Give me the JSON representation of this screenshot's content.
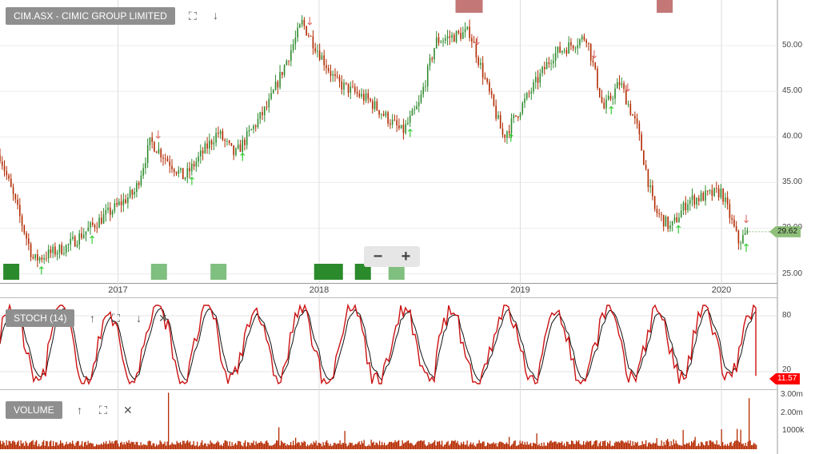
{
  "header": {
    "symbol_title": "CIM.ASX - CIMIC GROUP LIMITED",
    "fullscreen_icon": "expand-icon",
    "move_down_icon": "arrow-down-icon"
  },
  "stoch_panel": {
    "title": "STOCH (14)",
    "last_value": "11.57",
    "level_labels": [
      "80",
      "20"
    ]
  },
  "volume_panel": {
    "title": "VOLUME",
    "axis_labels": [
      "3.00m",
      "2.00m",
      "1000k"
    ]
  },
  "zoom": {
    "minus_label": "−",
    "plus_label": "+"
  },
  "colors": {
    "up": "#2e8b2e",
    "down": "#b22a00",
    "volume": "#b52a00",
    "stoch_k": "#cc1111",
    "stoch_d": "#111111",
    "signal_up": "#33cc33",
    "signal_down": "#e07070"
  },
  "chart_data": {
    "type": "line",
    "title": "CIM.ASX - CIMIC GROUP LIMITED",
    "ylim": [
      24,
      55
    ],
    "y_ticks": [
      "25.00",
      "30.00",
      "35.00",
      "40.00",
      "45.00",
      "50.00"
    ],
    "x_ticks": [
      "2017",
      "2018",
      "2019",
      "2020"
    ],
    "grid": true,
    "last_price": "29.62",
    "price_path": [
      {
        "date": "2016-06",
        "value": 38.0
      },
      {
        "date": "2016-08",
        "value": 26.5
      },
      {
        "date": "2016-10",
        "value": 28.0
      },
      {
        "date": "2016-12",
        "value": 31.0
      },
      {
        "date": "2017-02",
        "value": 34.0
      },
      {
        "date": "2017-03",
        "value": 39.5
      },
      {
        "date": "2017-05",
        "value": 35.5
      },
      {
        "date": "2017-07",
        "value": 40.5
      },
      {
        "date": "2017-08",
        "value": 38.0
      },
      {
        "date": "2017-10",
        "value": 43.5
      },
      {
        "date": "2017-12",
        "value": 52.5
      },
      {
        "date": "2018-02",
        "value": 46.0
      },
      {
        "date": "2018-04",
        "value": 44.0
      },
      {
        "date": "2018-06",
        "value": 40.5
      },
      {
        "date": "2018-07",
        "value": 43.5
      },
      {
        "date": "2018-08",
        "value": 50.5
      },
      {
        "date": "2018-10",
        "value": 51.5
      },
      {
        "date": "2018-12",
        "value": 40.0
      },
      {
        "date": "2019-03",
        "value": 49.0
      },
      {
        "date": "2019-05",
        "value": 51.0
      },
      {
        "date": "2019-06",
        "value": 43.0
      },
      {
        "date": "2019-07",
        "value": 46.0
      },
      {
        "date": "2019-08",
        "value": 41.0
      },
      {
        "date": "2019-09",
        "value": 32.0
      },
      {
        "date": "2019-10",
        "value": 30.0
      },
      {
        "date": "2019-11",
        "value": 33.0
      },
      {
        "date": "2020-01",
        "value": 34.0
      },
      {
        "date": "2020-02",
        "value": 28.5
      },
      {
        "date": "2020-02-20",
        "value": 29.62
      }
    ],
    "signals_up": [
      "2016-08",
      "2016-11",
      "2017-05",
      "2017-08",
      "2018-06",
      "2018-12",
      "2019-06",
      "2019-10",
      "2020-02"
    ],
    "signals_down": [
      "2017-03",
      "2017-12",
      "2018-10",
      "2019-05",
      "2019-07",
      "2020-02"
    ]
  }
}
